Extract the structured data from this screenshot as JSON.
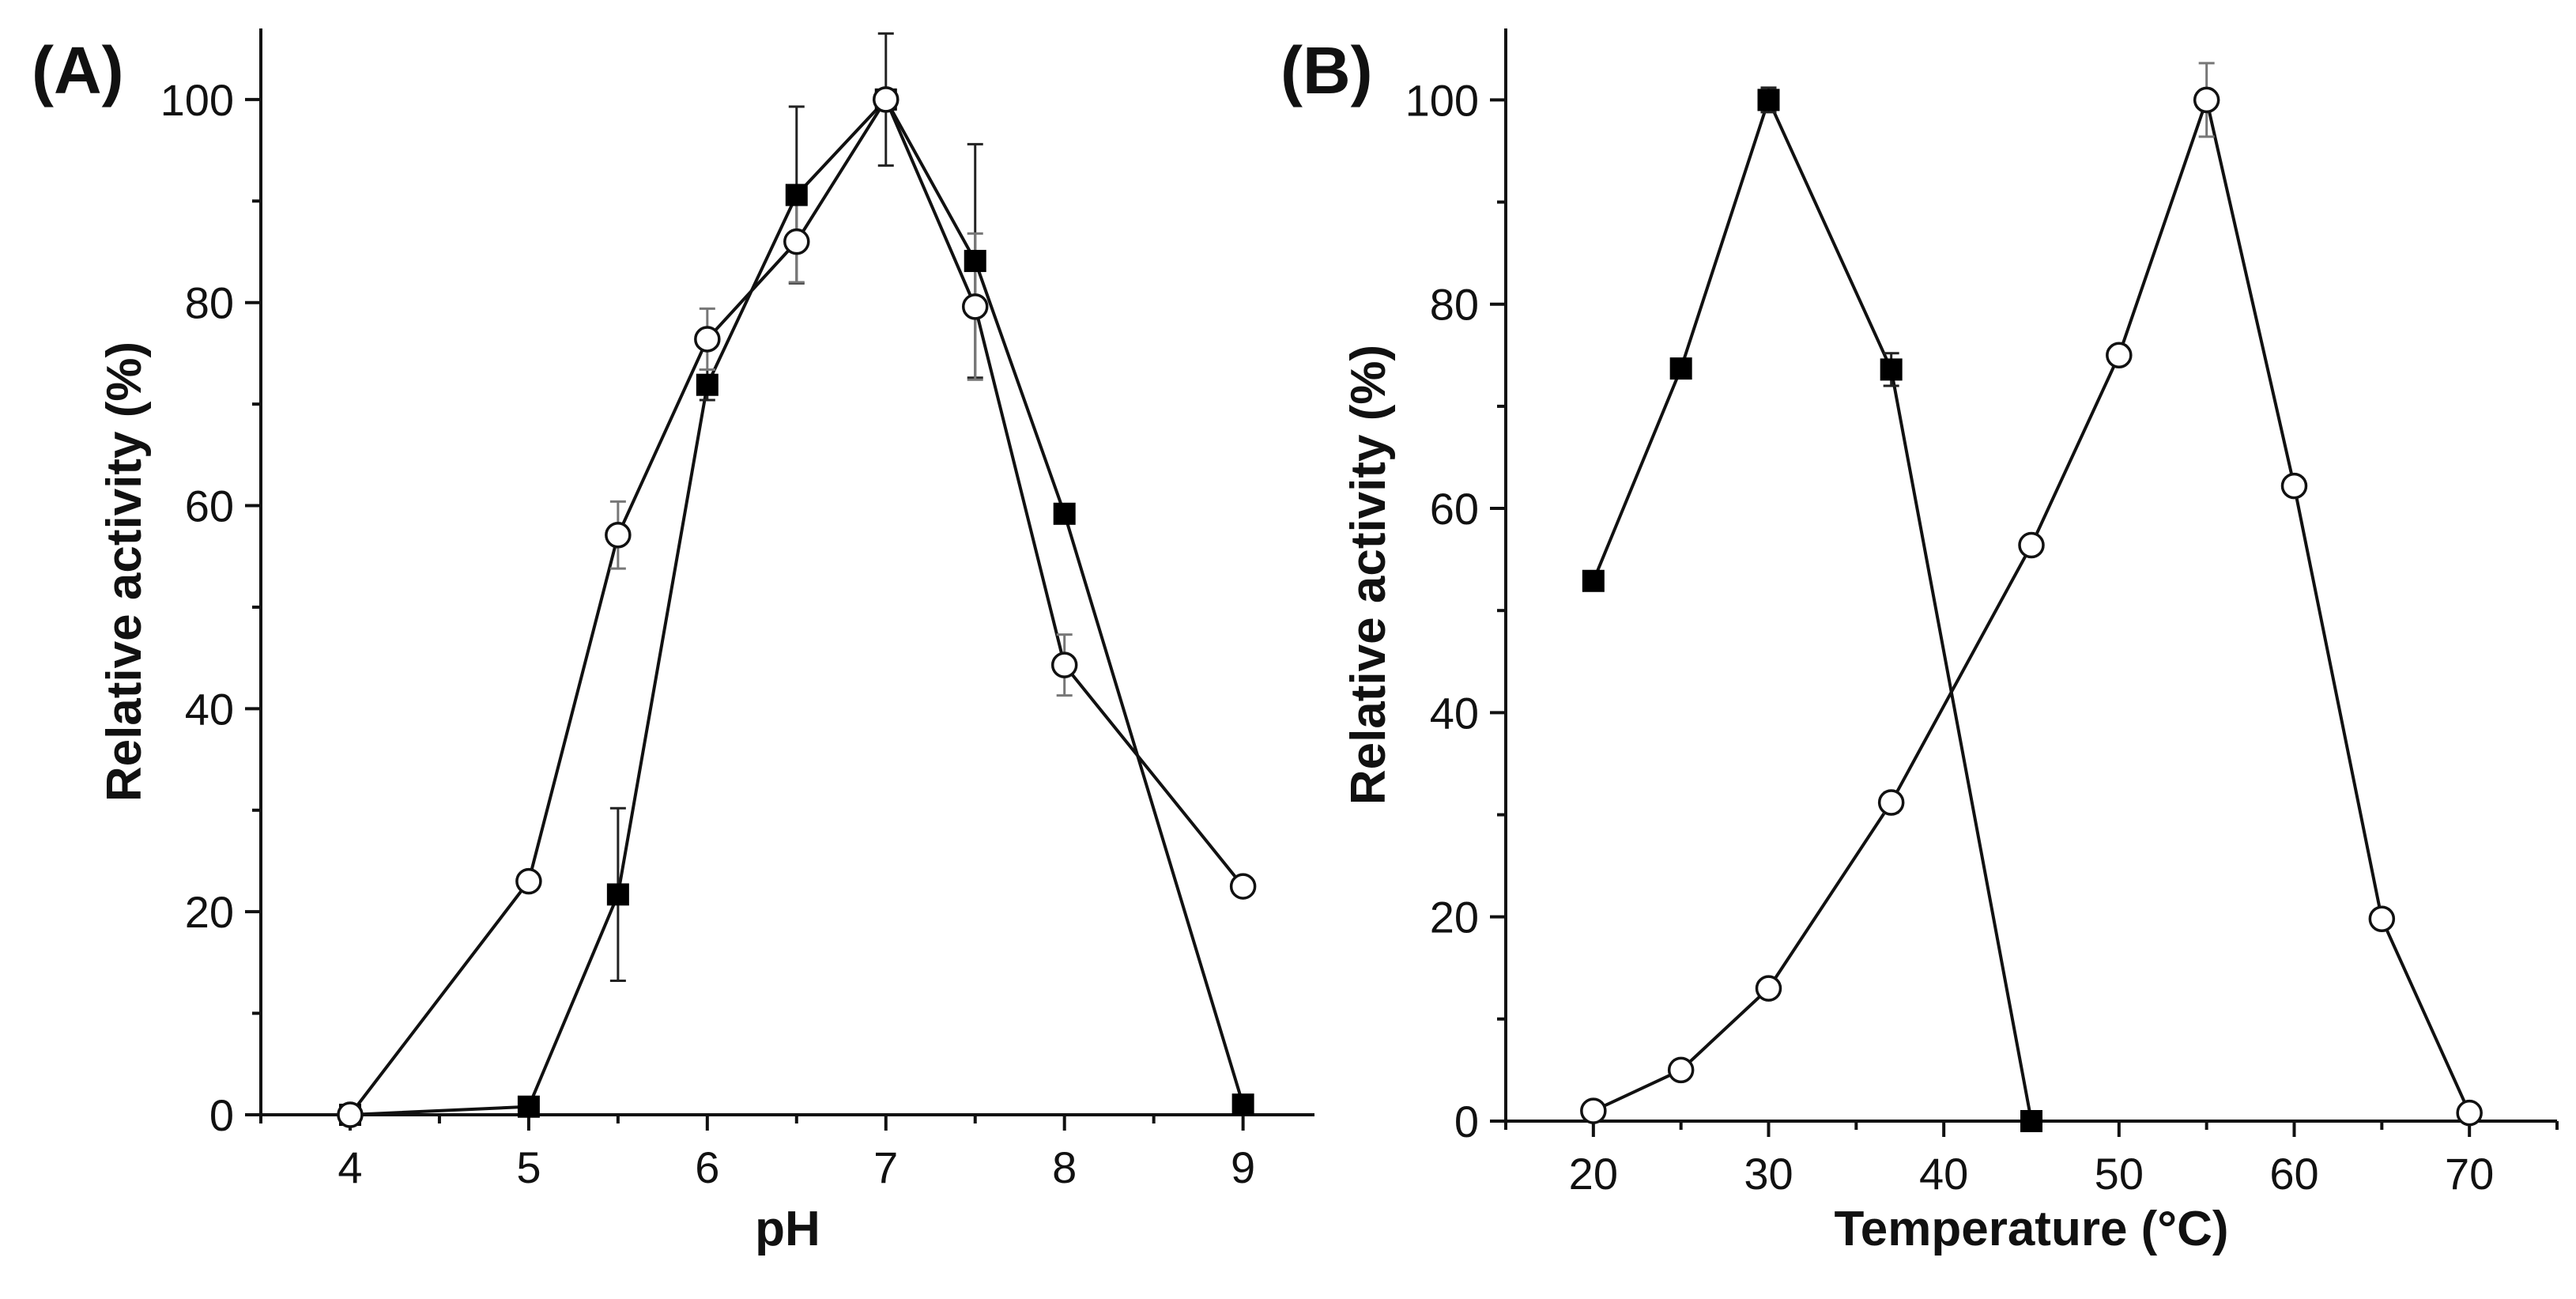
{
  "chart_data": [
    {
      "type": "line",
      "panel_label": "(A)",
      "xlabel": "pH",
      "ylabel": "Relative activity (%)",
      "xlim": [
        3.5,
        9.4
      ],
      "ylim": [
        0,
        107
      ],
      "xticks": [
        4,
        5,
        6,
        7,
        8,
        9
      ],
      "yticks": [
        0,
        20,
        40,
        60,
        80,
        100
      ],
      "xtick_labels": [
        "4",
        "5",
        "6",
        "7",
        "8",
        "9"
      ],
      "ytick_labels": [
        "0",
        "20",
        "40",
        "60",
        "80",
        "100"
      ],
      "grid": false,
      "series": [
        {
          "name": "filled squares",
          "marker": "square-filled",
          "x": [
            4,
            5,
            5.5,
            6,
            6.5,
            7,
            7.5,
            8,
            9
          ],
          "y": [
            0,
            0.8,
            21.7,
            71.9,
            90.6,
            100,
            84.1,
            59.2,
            1.0
          ],
          "err": [
            0,
            0,
            8.5,
            1.5,
            8.7,
            6.5,
            11.5,
            0.5,
            0
          ]
        },
        {
          "name": "open circles",
          "marker": "circle-open",
          "x": [
            4,
            5,
            5.5,
            6,
            6.5,
            7,
            7.5,
            8,
            9
          ],
          "y": [
            0,
            23.0,
            57.1,
            76.4,
            86.0,
            100,
            79.6,
            44.3,
            22.5
          ],
          "err": [
            0,
            0.5,
            3.3,
            3.0,
            4.0,
            0,
            7.2,
            3.0,
            0.5
          ]
        }
      ]
    },
    {
      "type": "line",
      "panel_label": "(B)",
      "xlabel": "Temperature (°C)",
      "ylabel": "Relative activity (%)",
      "xlim": [
        15,
        75
      ],
      "ylim": [
        0,
        107
      ],
      "xticks": [
        20,
        30,
        40,
        50,
        60,
        70
      ],
      "yticks": [
        0,
        20,
        40,
        60,
        80,
        100
      ],
      "xtick_labels": [
        "20",
        "30",
        "40",
        "50",
        "60",
        "70"
      ],
      "ytick_labels": [
        "0",
        "20",
        "40",
        "60",
        "80",
        "100"
      ],
      "grid": false,
      "series": [
        {
          "name": "filled squares",
          "marker": "square-filled",
          "x": [
            20,
            25,
            30,
            37,
            45
          ],
          "y": [
            52.9,
            73.7,
            100,
            73.6,
            0
          ],
          "err": [
            0,
            0,
            1.2,
            1.6,
            0
          ]
        },
        {
          "name": "open circles",
          "marker": "circle-open",
          "x": [
            20,
            25,
            30,
            37,
            45,
            50,
            55,
            60,
            65,
            70
          ],
          "y": [
            1.0,
            5.0,
            13.0,
            31.2,
            56.4,
            75.0,
            100,
            62.2,
            19.8,
            0.8
          ],
          "err": [
            0,
            0.8,
            0.8,
            1.0,
            0.5,
            0.5,
            3.6,
            0.5,
            0.5,
            0
          ]
        }
      ]
    }
  ]
}
